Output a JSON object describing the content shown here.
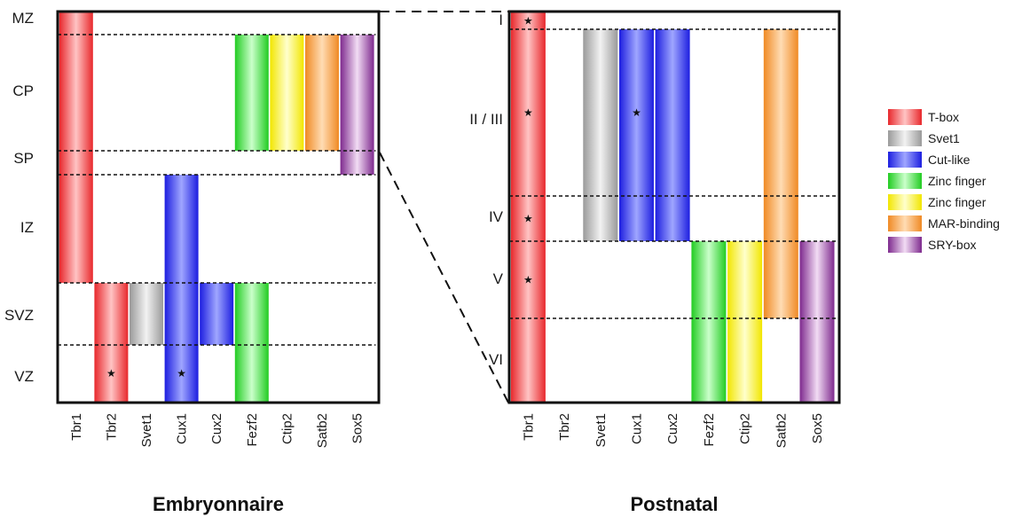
{
  "families": [
    {
      "name": "T-box",
      "color": "#e8282c",
      "light": "#ffc4c4"
    },
    {
      "name": "Svet1",
      "color": "#9a9a9a",
      "light": "#f2f2f2"
    },
    {
      "name": "Cut-like",
      "color": "#1d1ee0",
      "light": "#9fa6ff"
    },
    {
      "name": "Zinc finger",
      "color": "#22cc22",
      "light": "#caffca"
    },
    {
      "name": "Zinc finger",
      "color": "#f2e600",
      "light": "#ffffcc"
    },
    {
      "name": "MAR-binding",
      "color": "#f08a24",
      "light": "#ffdcb4"
    },
    {
      "name": "SRY-box",
      "color": "#7e2a8e",
      "light": "#f2dcf4"
    }
  ],
  "genes": [
    {
      "name": "Tbr1",
      "family": 0
    },
    {
      "name": "Tbr2",
      "family": 0
    },
    {
      "name": "Svet1",
      "family": 1
    },
    {
      "name": "Cux1",
      "family": 2
    },
    {
      "name": "Cux2",
      "family": 2
    },
    {
      "name": "Fezf2",
      "family": 3
    },
    {
      "name": "Ctip2",
      "family": 4
    },
    {
      "name": "Satb2",
      "family": 5
    },
    {
      "name": "Sox5",
      "family": 6
    }
  ],
  "panels": [
    {
      "title": "Embryonnaire",
      "layers": [
        "MZ",
        "CP",
        "SP",
        "IZ",
        "SVZ",
        "VZ"
      ],
      "expression": [
        {
          "gene": 0,
          "from": 0,
          "to": 3,
          "stars": []
        },
        {
          "gene": 1,
          "from": 4,
          "to": 5,
          "stars": [
            5
          ]
        },
        {
          "gene": 2,
          "from": 4,
          "to": 4,
          "stars": []
        },
        {
          "gene": 3,
          "from": 3,
          "to": 5,
          "stars": [
            5
          ]
        },
        {
          "gene": 4,
          "from": 4,
          "to": 4,
          "stars": []
        },
        {
          "gene": 5,
          "from": 1,
          "to": 1,
          "stars": []
        },
        {
          "gene": 5,
          "from": 4,
          "to": 5,
          "stars": []
        },
        {
          "gene": 6,
          "from": 1,
          "to": 1,
          "stars": []
        },
        {
          "gene": 7,
          "from": 1,
          "to": 1,
          "stars": []
        },
        {
          "gene": 8,
          "from": 1,
          "to": 2,
          "stars": []
        }
      ]
    },
    {
      "title": "Postnatal",
      "layers": [
        "I",
        "II / III",
        "IV",
        "V",
        "VI"
      ],
      "expression": [
        {
          "gene": 0,
          "from": 0,
          "to": 4,
          "stars": [
            0,
            1,
            2,
            3
          ]
        },
        {
          "gene": 2,
          "from": 1,
          "to": 2,
          "stars": []
        },
        {
          "gene": 3,
          "from": 1,
          "to": 2,
          "stars": [
            1
          ]
        },
        {
          "gene": 4,
          "from": 1,
          "to": 2,
          "stars": []
        },
        {
          "gene": 5,
          "from": 3,
          "to": 4,
          "stars": []
        },
        {
          "gene": 6,
          "from": 3,
          "to": 4,
          "stars": []
        },
        {
          "gene": 7,
          "from": 1,
          "to": 3,
          "stars": []
        },
        {
          "gene": 8,
          "from": 3,
          "to": 4,
          "stars": []
        }
      ]
    }
  ]
}
